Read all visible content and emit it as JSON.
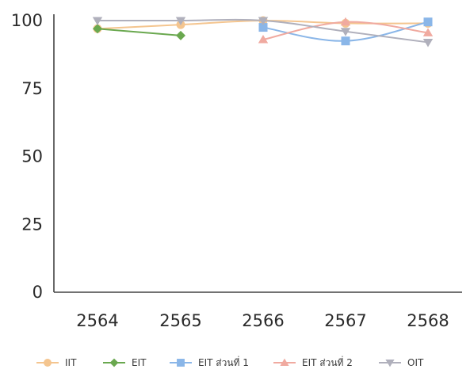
{
  "chart_data": {
    "type": "line",
    "x": [
      "2564",
      "2565",
      "2566",
      "2567",
      "2568"
    ],
    "ylim": [
      0,
      100
    ],
    "yticks": [
      0,
      25,
      50,
      75,
      100
    ],
    "grid": false,
    "legend_position": "bottom",
    "series": [
      {
        "name": "IIT",
        "color": "#f4c58f",
        "marker": "circle",
        "values": [
          97,
          98.5,
          100,
          99,
          99
        ]
      },
      {
        "name": "EIT",
        "color": "#6aa84f",
        "marker": "diamond",
        "values": [
          97,
          94.5,
          null,
          null,
          null
        ]
      },
      {
        "name": "EIT ส่วนที่ 1",
        "color": "#8ab6e8",
        "marker": "square",
        "values": [
          null,
          null,
          97.5,
          92.5,
          99.5
        ]
      },
      {
        "name": "EIT ส่วนที่ 2",
        "color": "#f0aaa0",
        "marker": "triangle-up",
        "values": [
          null,
          null,
          93,
          99.5,
          95.5
        ]
      },
      {
        "name": "OIT",
        "color": "#b0b0bc",
        "marker": "triangle-down",
        "values": [
          100,
          100,
          100,
          96,
          92
        ]
      }
    ]
  }
}
